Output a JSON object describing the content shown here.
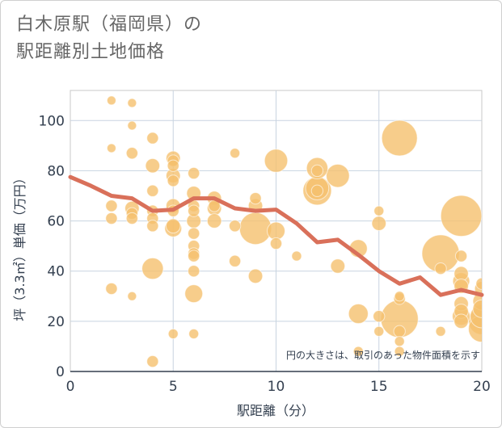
{
  "title_line1": "白木原駅（福岡県）の",
  "title_line2": "駅距離別土地価格",
  "chart_data": {
    "type": "scatter",
    "title": "白木原駅（福岡県）の駅距離別土地価格",
    "xlabel": "駅距離（分）",
    "ylabel": "坪（3.3㎡）単価（万円）",
    "xlim": [
      0,
      20
    ],
    "ylim": [
      0,
      112
    ],
    "xticks": [
      0,
      5,
      10,
      15,
      20
    ],
    "yticks": [
      0,
      20,
      40,
      60,
      80,
      100
    ],
    "grid": true,
    "note": "円の大きさは、取引のあった物件面積を示す",
    "bubble_color": "#f5c06e",
    "line_color": "#d9705a",
    "points": [
      {
        "x": 2,
        "y": 108,
        "s": 1
      },
      {
        "x": 2,
        "y": 89,
        "s": 1
      },
      {
        "x": 2,
        "y": 66,
        "s": 1.3
      },
      {
        "x": 2,
        "y": 61,
        "s": 1.3
      },
      {
        "x": 2,
        "y": 33,
        "s": 1.3
      },
      {
        "x": 3,
        "y": 107,
        "s": 1
      },
      {
        "x": 3,
        "y": 98,
        "s": 1
      },
      {
        "x": 3,
        "y": 87,
        "s": 1.3
      },
      {
        "x": 3,
        "y": 65,
        "s": 1.6
      },
      {
        "x": 3,
        "y": 63,
        "s": 1.3
      },
      {
        "x": 3,
        "y": 61,
        "s": 1.3
      },
      {
        "x": 3,
        "y": 30,
        "s": 1
      },
      {
        "x": 4,
        "y": 93,
        "s": 1.3
      },
      {
        "x": 4,
        "y": 82,
        "s": 1.6
      },
      {
        "x": 4,
        "y": 72,
        "s": 1.3
      },
      {
        "x": 4,
        "y": 64,
        "s": 1.3
      },
      {
        "x": 4,
        "y": 61,
        "s": 1.3
      },
      {
        "x": 4,
        "y": 58,
        "s": 1.3
      },
      {
        "x": 4,
        "y": 41,
        "s": 2.4
      },
      {
        "x": 4,
        "y": 4,
        "s": 1.3
      },
      {
        "x": 5,
        "y": 85,
        "s": 1.6
      },
      {
        "x": 5,
        "y": 84,
        "s": 1.3
      },
      {
        "x": 5,
        "y": 82,
        "s": 1.3
      },
      {
        "x": 5,
        "y": 78,
        "s": 1.6
      },
      {
        "x": 5,
        "y": 76,
        "s": 1.3
      },
      {
        "x": 5,
        "y": 66,
        "s": 1.6
      },
      {
        "x": 5,
        "y": 64,
        "s": 1.3
      },
      {
        "x": 5,
        "y": 58,
        "s": 1.6
      },
      {
        "x": 5,
        "y": 57,
        "s": 1.9
      },
      {
        "x": 5,
        "y": 15,
        "s": 1.1
      },
      {
        "x": 6,
        "y": 79,
        "s": 1.3
      },
      {
        "x": 6,
        "y": 71,
        "s": 1.6
      },
      {
        "x": 6,
        "y": 66,
        "s": 1.3
      },
      {
        "x": 6,
        "y": 64,
        "s": 1.3
      },
      {
        "x": 6,
        "y": 60,
        "s": 1.6
      },
      {
        "x": 6,
        "y": 55,
        "s": 1.3
      },
      {
        "x": 6,
        "y": 50,
        "s": 1.3
      },
      {
        "x": 6,
        "y": 47,
        "s": 1.3
      },
      {
        "x": 6,
        "y": 46,
        "s": 1.3
      },
      {
        "x": 6,
        "y": 40,
        "s": 1.3
      },
      {
        "x": 6,
        "y": 31,
        "s": 2.0
      },
      {
        "x": 6,
        "y": 15,
        "s": 1.1
      },
      {
        "x": 7,
        "y": 69,
        "s": 1.6
      },
      {
        "x": 7,
        "y": 66,
        "s": 1.3
      },
      {
        "x": 7,
        "y": 65,
        "s": 1.6
      },
      {
        "x": 7,
        "y": 60,
        "s": 1.6
      },
      {
        "x": 8,
        "y": 87,
        "s": 1.1
      },
      {
        "x": 8,
        "y": 58,
        "s": 1.3
      },
      {
        "x": 8,
        "y": 44,
        "s": 1.3
      },
      {
        "x": 9,
        "y": 69,
        "s": 1.3
      },
      {
        "x": 9,
        "y": 66,
        "s": 1.6
      },
      {
        "x": 9,
        "y": 57,
        "s": 3.6
      },
      {
        "x": 9,
        "y": 38,
        "s": 1.6
      },
      {
        "x": 10,
        "y": 84,
        "s": 2.6
      },
      {
        "x": 10,
        "y": 56,
        "s": 2.0
      },
      {
        "x": 10,
        "y": 51,
        "s": 1.3
      },
      {
        "x": 11,
        "y": 46,
        "s": 1.1
      },
      {
        "x": 12,
        "y": 81,
        "s": 2.4
      },
      {
        "x": 12,
        "y": 80,
        "s": 1.3
      },
      {
        "x": 12,
        "y": 73,
        "s": 2.6
      },
      {
        "x": 12,
        "y": 72,
        "s": 3.2
      },
      {
        "x": 12,
        "y": 72,
        "s": 1.3
      },
      {
        "x": 13,
        "y": 78,
        "s": 2.6
      },
      {
        "x": 13,
        "y": 42,
        "s": 1.6
      },
      {
        "x": 14,
        "y": 49,
        "s": 2.0
      },
      {
        "x": 14,
        "y": 23,
        "s": 2.2
      },
      {
        "x": 14,
        "y": 8,
        "s": 1.1
      },
      {
        "x": 15,
        "y": 64,
        "s": 1.1
      },
      {
        "x": 15,
        "y": 59,
        "s": 1.6
      },
      {
        "x": 15,
        "y": 22,
        "s": 1.3
      },
      {
        "x": 15,
        "y": 16,
        "s": 1.1
      },
      {
        "x": 16,
        "y": 93,
        "s": 4.0
      },
      {
        "x": 16,
        "y": 30,
        "s": 1.1
      },
      {
        "x": 16,
        "y": 29,
        "s": 1.3
      },
      {
        "x": 16,
        "y": 21,
        "s": 4.2
      },
      {
        "x": 16,
        "y": 16,
        "s": 1.3
      },
      {
        "x": 16,
        "y": 12,
        "s": 1.1
      },
      {
        "x": 16,
        "y": 8,
        "s": 1.1
      },
      {
        "x": 18,
        "y": 47,
        "s": 4.2
      },
      {
        "x": 18,
        "y": 41,
        "s": 1.3
      },
      {
        "x": 18,
        "y": 16,
        "s": 1.1
      },
      {
        "x": 19,
        "y": 62,
        "s": 4.6
      },
      {
        "x": 19,
        "y": 46,
        "s": 1.3
      },
      {
        "x": 19,
        "y": 39,
        "s": 1.6
      },
      {
        "x": 19,
        "y": 36,
        "s": 1.9
      },
      {
        "x": 19,
        "y": 34,
        "s": 1.6
      },
      {
        "x": 19,
        "y": 27,
        "s": 1.6
      },
      {
        "x": 19,
        "y": 24,
        "s": 1.6
      },
      {
        "x": 19,
        "y": 22,
        "s": 2.0
      },
      {
        "x": 19,
        "y": 20,
        "s": 1.6
      },
      {
        "x": 20,
        "y": 35,
        "s": 1.3
      },
      {
        "x": 20,
        "y": 33,
        "s": 1.6
      },
      {
        "x": 20,
        "y": 28,
        "s": 2.0
      },
      {
        "x": 20,
        "y": 25,
        "s": 2.0
      },
      {
        "x": 20,
        "y": 22,
        "s": 2.6
      },
      {
        "x": 20,
        "y": 20,
        "s": 3.0
      },
      {
        "x": 20,
        "y": 17,
        "s": 3.0
      }
    ],
    "trend": {
      "x": [
        0,
        1,
        2,
        3,
        4,
        5,
        6,
        7,
        8,
        9,
        10,
        11,
        12,
        13,
        14,
        15,
        16,
        17,
        18,
        19,
        20
      ],
      "y": [
        77.5,
        74,
        70,
        69,
        64,
        64.5,
        69,
        69,
        65,
        64,
        64.5,
        59,
        51.5,
        52.5,
        46.5,
        40,
        35,
        37.5,
        30.5,
        32.5,
        30.5
      ]
    }
  }
}
